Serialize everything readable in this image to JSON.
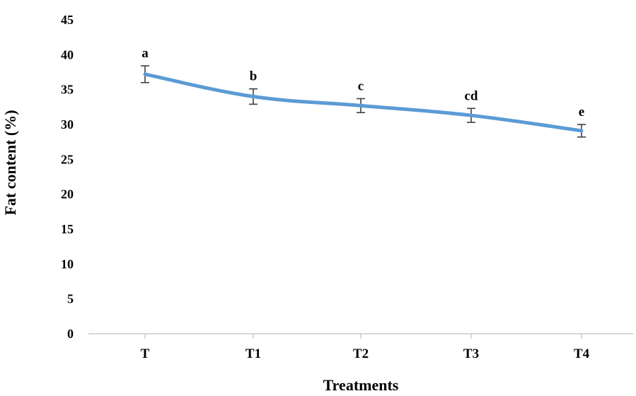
{
  "chart_data": {
    "type": "line",
    "categories": [
      "T",
      "T1",
      "T2",
      "T3",
      "T4"
    ],
    "series": [
      {
        "values": [
          37.2,
          34.0,
          32.7,
          31.3,
          29.1
        ],
        "error": [
          1.2,
          1.1,
          1.0,
          1.0,
          0.9
        ],
        "labels": [
          "a",
          "b",
          "c",
          "cd",
          "e"
        ],
        "color": "#5b9bd5"
      }
    ],
    "xlabel": "Treatments",
    "ylabel": "Fat content (%)",
    "ylim": [
      0,
      45
    ],
    "yticks": [
      0,
      5,
      10,
      15,
      20,
      25,
      30,
      35,
      40,
      45
    ],
    "grid": false,
    "legend": "none"
  }
}
